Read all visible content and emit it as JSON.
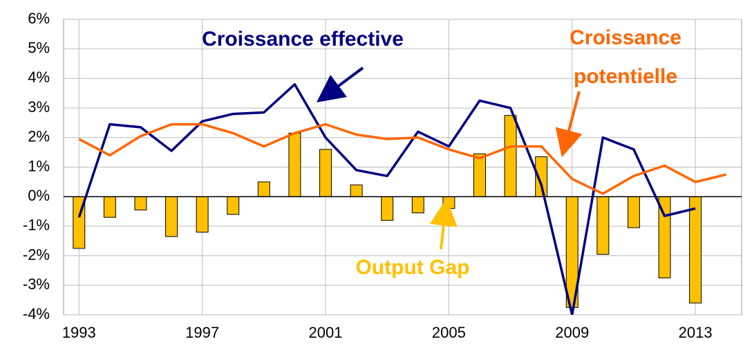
{
  "chart_data": {
    "type": "combo",
    "categories": [
      "1993",
      null,
      null,
      null,
      "1997",
      null,
      null,
      null,
      "2001",
      null,
      null,
      null,
      "2005",
      null,
      null,
      null,
      "2009",
      null,
      null,
      null,
      "2013",
      null
    ],
    "series": [
      {
        "type": "line",
        "color": "#000080",
        "values": [
          -0.7,
          2.45,
          2.35,
          1.55,
          2.55,
          2.8,
          2.85,
          3.8,
          2.0,
          0.9,
          0.7,
          2.2,
          1.7,
          3.25,
          3.0,
          0.4,
          -4.0,
          2.0,
          1.6,
          -0.65,
          -0.4,
          null
        ]
      },
      {
        "type": "line",
        "color": "#FF6600",
        "values": [
          1.95,
          1.4,
          2.05,
          2.45,
          2.45,
          2.15,
          1.7,
          2.15,
          2.45,
          2.1,
          1.95,
          2.0,
          1.6,
          1.3,
          1.7,
          1.7,
          0.6,
          0.1,
          0.7,
          1.05,
          0.5,
          0.75
        ]
      },
      {
        "type": "bar",
        "color": "#FFC000",
        "values": [
          -1.75,
          -0.7,
          -0.45,
          -1.35,
          -1.2,
          -0.6,
          0.5,
          2.15,
          1.6,
          0.4,
          -0.8,
          -0.55,
          -0.4,
          1.45,
          2.75,
          1.35,
          -3.75,
          -1.95,
          -1.05,
          -2.75,
          -3.6,
          null
        ]
      }
    ],
    "annotations": [
      {
        "text": "Croissance effective",
        "color": "#000080"
      },
      {
        "lines": [
          "Croissance",
          "potentielle"
        ],
        "color": "#FF6600"
      },
      {
        "text": "Output Gap",
        "color": "#FFC000"
      }
    ],
    "ylim": [
      -4,
      6
    ],
    "yticks": [
      {
        "value": -4,
        "label": "-4%"
      },
      {
        "value": -3,
        "label": "-3%"
      },
      {
        "value": -2,
        "label": "-2%"
      },
      {
        "value": -1,
        "label": "-1%"
      },
      {
        "value": 0,
        "label": "0%"
      },
      {
        "value": 1,
        "label": "1%"
      },
      {
        "value": 2,
        "label": "2%"
      },
      {
        "value": 3,
        "label": "3%"
      },
      {
        "value": 4,
        "label": "4%"
      },
      {
        "value": 5,
        "label": "5%"
      },
      {
        "value": 6,
        "label": "6%"
      }
    ],
    "grid": true
  }
}
